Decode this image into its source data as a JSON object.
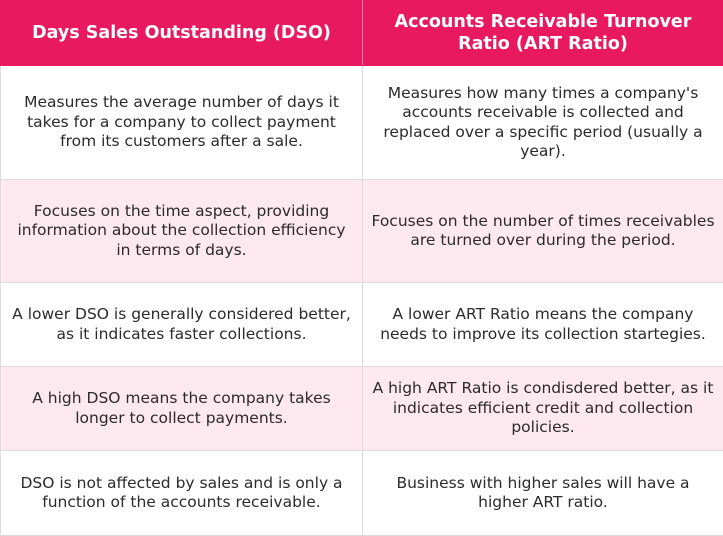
{
  "header": {
    "col1": "Days Sales Outstanding (DSO)",
    "col2": "Accounts Receivable Turnover Ratio (ART Ratio)"
  },
  "rows": [
    {
      "dso": "Measures the average number of days it takes for a company to collect payment from its customers after a sale.",
      "art": "Measures how many times a company's accounts receivable is collected and replaced over a specific period (usually a year)."
    },
    {
      "dso": "Focuses on the time aspect, providing information about the collection efficiency in terms of days.",
      "art": "Focuses on the number of times receivables are turned over during the period."
    },
    {
      "dso": "A lower DSO is generally considered better, as it indicates faster collections.",
      "art": "A lower ART Ratio means the company needs to improve its collection startegies."
    },
    {
      "dso": "A high DSO means the company takes longer to collect payments.",
      "art": "A high ART Ratio is condisdered better, as it indicates efficient credit and collection policies."
    },
    {
      "dso": "DSO is not affected by sales and is only a function of the accounts receivable.",
      "art": "Business with higher sales will have a higher ART ratio."
    }
  ],
  "colors": {
    "header_bg": "#e8195f",
    "header_text": "#ffffff",
    "alt_row_bg": "#fde9ef",
    "row_bg": "#ffffff",
    "body_text": "#2b2b2b",
    "border": "#dcdcdc"
  }
}
